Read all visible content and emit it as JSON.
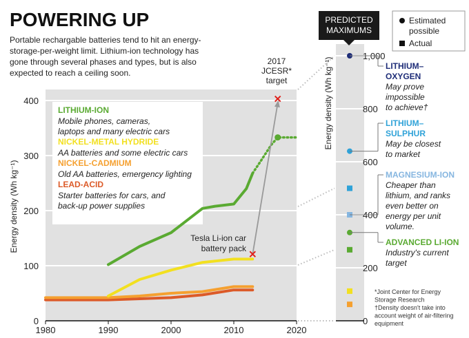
{
  "header": {
    "title": "POWERING UP",
    "intro_lines": [
      "Portable rechargable batteries tend to hit an energy-",
      "storage-per-weight limit. Lithium-ion technology has",
      "gone through several phases and types, but is also",
      "expected to reach a ceiling soon."
    ]
  },
  "colors": {
    "background_panel": "#e1e1e1",
    "gridline": "#ffffff",
    "lithium_ion": "#5aaa32",
    "nickel_metal_hydride": "#f2e020",
    "nickel_cadmium": "#f5a030",
    "lead_acid": "#dc5a28",
    "lithium_oxygen": "#1e2d78",
    "lithium_sulphur": "#2fa2d8",
    "magnesium_ion": "#86b6e0",
    "target_marker": "#e0201a",
    "tesla_line": "#999999"
  },
  "chart_data": [
    {
      "type": "line",
      "ylabel": "Energy density (Wh kg⁻¹)",
      "xlim": [
        1980,
        2020
      ],
      "ylim": [
        0,
        420
      ],
      "x_ticks": [
        1980,
        1990,
        2000,
        2010,
        2020
      ],
      "y_ticks": [
        0,
        100,
        200,
        300,
        400
      ],
      "grid": "horizontal",
      "series": [
        {
          "name": "LITHIUM-ION",
          "description_lines": [
            "Mobile phones, cameras,",
            "laptops and many electric cars"
          ],
          "color_key": "lithium_ion",
          "points": [
            [
              1990,
              102
            ],
            [
              1995,
              135
            ],
            [
              2000,
              160
            ],
            [
              2005,
              204
            ],
            [
              2007,
              208
            ],
            [
              2010,
              212
            ],
            [
              2012,
              240
            ],
            [
              2013,
              268
            ]
          ],
          "projection": [
            [
              2013,
              268
            ],
            [
              2014,
              285
            ],
            [
              2016,
              320
            ],
            [
              2017,
              333
            ],
            [
              2020,
              333
            ]
          ],
          "projection_marker": [
            2017,
            333
          ]
        },
        {
          "name": "NICKEL-METAL HYDRIDE",
          "description_lines": [
            "AA batteries and some electric cars"
          ],
          "color_key": "nickel_metal_hydride",
          "points": [
            [
              1990,
              45
            ],
            [
              1995,
              75
            ],
            [
              2000,
              92
            ],
            [
              2005,
              106
            ],
            [
              2010,
              112
            ],
            [
              2013,
              112
            ]
          ]
        },
        {
          "name": "NICKEL-CADMIUM",
          "description_lines": [
            "Old AA batteries, emergency lighting"
          ],
          "color_key": "nickel_cadmium",
          "points": [
            [
              1980,
              42
            ],
            [
              1990,
              42
            ],
            [
              1995,
              45
            ],
            [
              2000,
              50
            ],
            [
              2005,
              53
            ],
            [
              2010,
              62
            ],
            [
              2013,
              62
            ]
          ]
        },
        {
          "name": "LEAD-ACID",
          "description_lines": [
            "Starter batteries for cars, and",
            "back-up power supplies"
          ],
          "color_key": "lead_acid",
          "points": [
            [
              1980,
              38
            ],
            [
              1990,
              38
            ],
            [
              2000,
              42
            ],
            [
              2005,
              47
            ],
            [
              2010,
              56
            ],
            [
              2013,
              56
            ]
          ]
        }
      ],
      "annotations": [
        {
          "label_lines": [
            "Tesla Li-ion car",
            "battery pack"
          ],
          "point": [
            2013,
            121
          ],
          "marker": "x",
          "color_key": "target_marker"
        },
        {
          "label_lines": [
            "2017",
            "JCESR*",
            "target"
          ],
          "point": [
            2017,
            403
          ],
          "marker": "x",
          "color_key": "target_marker"
        }
      ]
    },
    {
      "type": "scatter",
      "title_lines": [
        "PREDICTED",
        "MAXIMUMS"
      ],
      "ylabel": "Energy density (Wh kg⁻¹)",
      "ylim": [
        0,
        1000
      ],
      "y_ticks": [
        0,
        200,
        400,
        600,
        800,
        1000
      ],
      "y_tick_labels": [
        "0",
        "200",
        "400",
        "600",
        "800",
        "1,000"
      ],
      "legend": {
        "estimated": "Estimated possible",
        "actual": "Actual"
      },
      "points": [
        {
          "name": "LITHIUM–OXYGEN",
          "value": 1000,
          "kind": "estimated",
          "color_key": "lithium_oxygen",
          "note_lines": [
            "May prove",
            "impossible",
            "to achieve†"
          ]
        },
        {
          "name": "LITHIUM–SULPHUR",
          "value": 640,
          "kind": "estimated",
          "color_key": "lithium_sulphur",
          "note_lines": [
            "May be closest",
            "to market"
          ]
        },
        {
          "name": "MAGNESIUM-ION",
          "value": 400,
          "kind": "estimated",
          "color_key": "magnesium_ion",
          "note_lines": [
            "Cheaper than",
            "lithium, and ranks",
            "even better on",
            "energy per unit",
            "volume."
          ]
        },
        {
          "name": "LITHIUM–SULPHUR",
          "value": 500,
          "kind": "actual",
          "color_key": "lithium_sulphur"
        },
        {
          "name": "MAGNESIUM-ION",
          "value": 400,
          "kind": "actual",
          "color_key": "magnesium_ion"
        },
        {
          "name": "ADVANCED LI-ION",
          "value": 333,
          "kind": "estimated",
          "color_key": "lithium_ion",
          "note_lines": [
            "Industry's current",
            "target"
          ]
        },
        {
          "name": "LITHIUM-ION",
          "value": 268,
          "kind": "actual",
          "color_key": "lithium_ion"
        },
        {
          "name": "NICKEL-METAL HYDRIDE",
          "value": 112,
          "kind": "actual",
          "color_key": "nickel_metal_hydride"
        },
        {
          "name": "NICKEL-CADMIUM",
          "value": 62,
          "kind": "actual",
          "color_key": "nickel_cadmium"
        }
      ]
    }
  ],
  "footnotes": {
    "lines": [
      "*Joint Center for Energy",
      "Storage Research",
      "†Density doesn't take into",
      "account weight of air-filtering",
      "equipment"
    ]
  }
}
